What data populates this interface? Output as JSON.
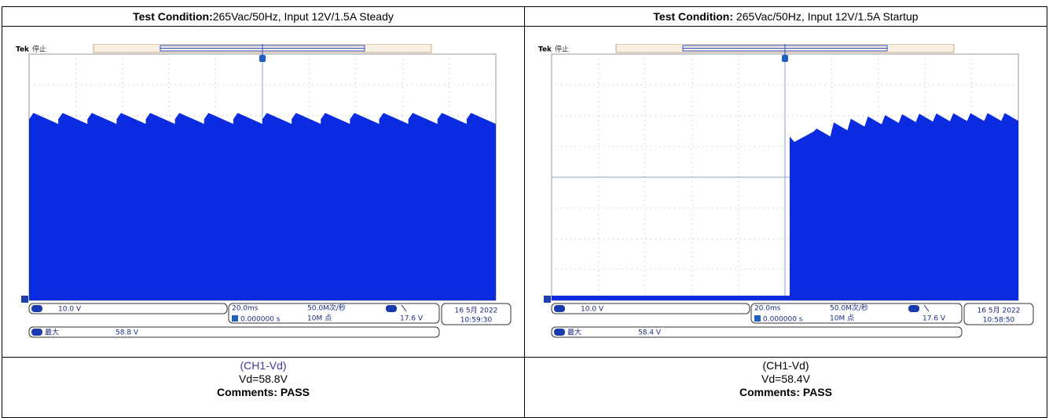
{
  "columns": [
    {
      "header": {
        "label": "Test Condition:",
        "text": "265Vac/50Hz, Input 12V/1.5A Steady"
      },
      "scope": {
        "brand": "Tek",
        "state": "停止",
        "channel": "1",
        "volts": "10.0 V",
        "timebase": "20.0ms",
        "offset": "0.000000 s",
        "rate": "50.0M次/秒",
        "points": "10M 点",
        "trigger_level": "17.6 V",
        "date": "16 5月 2022",
        "clock": "10:59:30",
        "measure_label": "最大",
        "measure_value": "58.8 V"
      },
      "caption": {
        "channel": "(CH1-Vd)",
        "value": "Vd=58.8V",
        "comments": "Comments: PASS"
      }
    },
    {
      "header": {
        "label": "Test Condition:",
        "text": " 265Vac/50Hz, Input 12V/1.5A Startup"
      },
      "scope": {
        "brand": "Tek",
        "state": "停止",
        "channel": "1",
        "volts": "10.0 V",
        "timebase": "20.0ms",
        "offset": "0.000000 s",
        "rate": "50.0M次/秒",
        "points": "10M 点",
        "trigger_level": "17.6 V",
        "date": "16 5月 2022",
        "clock": "10:58:50",
        "measure_label": "最大",
        "measure_value": "58.4 V"
      },
      "caption": {
        "channel": "(CH1-Vd)",
        "value": "Vd=58.4V",
        "comments": "Comments: PASS"
      }
    }
  ]
}
